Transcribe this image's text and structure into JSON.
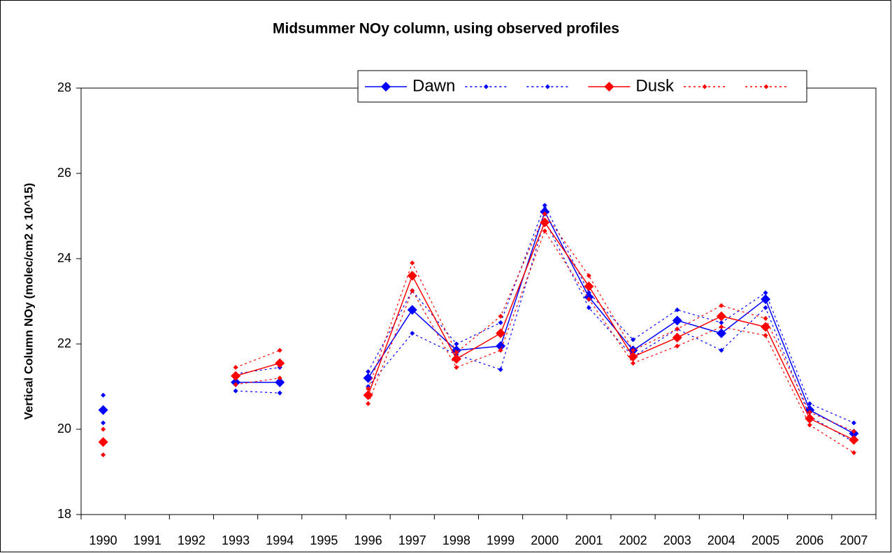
{
  "chart_data": {
    "type": "line",
    "title": "Midsummer NOy column, using observed profiles",
    "y_label": "Vertical Column NOy (molec/cm2 x 10^15)",
    "categories": [
      "1990",
      "1991",
      "1992",
      "1993",
      "1994",
      "1995",
      "1996",
      "1997",
      "1998",
      "1999",
      "2000",
      "2001",
      "2002",
      "2003",
      "2004",
      "2005",
      "2006",
      "2007"
    ],
    "ylim": [
      18,
      28
    ],
    "yticks": [
      18,
      20,
      22,
      24,
      26,
      28
    ],
    "grid": false,
    "legend": "top-right",
    "series": [
      {
        "name": "Dawn",
        "color": "#0000ff",
        "dash": "solid",
        "marker": "large",
        "values": [
          20.45,
          null,
          null,
          21.1,
          21.1,
          null,
          21.2,
          22.8,
          21.85,
          21.95,
          25.1,
          23.1,
          21.85,
          22.55,
          22.25,
          23.05,
          20.45,
          19.9
        ]
      },
      {
        "color": "#0000ff",
        "dash": "dotted",
        "marker": "small",
        "values": [
          20.8,
          null,
          null,
          21.3,
          21.45,
          null,
          21.35,
          23.25,
          22.0,
          22.5,
          25.25,
          23.2,
          22.1,
          22.8,
          22.5,
          23.2,
          20.6,
          20.15
        ]
      },
      {
        "color": "#0000ff",
        "dash": "dotted",
        "marker": "small",
        "values": [
          20.15,
          null,
          null,
          20.9,
          20.85,
          null,
          21.0,
          22.25,
          21.75,
          21.4,
          24.9,
          22.85,
          21.7,
          22.35,
          21.85,
          22.85,
          20.3,
          19.7
        ]
      },
      {
        "name": "Dusk",
        "color": "#ff0000",
        "dash": "solid",
        "marker": "large",
        "values": [
          19.7,
          null,
          null,
          21.25,
          21.55,
          null,
          20.8,
          23.6,
          21.65,
          22.25,
          24.85,
          23.35,
          21.7,
          22.15,
          22.65,
          22.4,
          20.25,
          19.75
        ]
      },
      {
        "color": "#ff0000",
        "dash": "dotted",
        "marker": "small",
        "values": [
          20.0,
          null,
          null,
          21.45,
          21.85,
          null,
          20.95,
          23.9,
          21.8,
          22.65,
          25.05,
          23.6,
          21.85,
          22.35,
          22.9,
          22.6,
          20.4,
          19.95
        ]
      },
      {
        "color": "#ff0000",
        "dash": "dotted",
        "marker": "small",
        "values": [
          19.4,
          null,
          null,
          21.05,
          21.2,
          null,
          20.6,
          23.25,
          21.45,
          21.85,
          24.65,
          23.05,
          21.55,
          21.95,
          22.4,
          22.2,
          20.1,
          19.45
        ]
      }
    ]
  }
}
